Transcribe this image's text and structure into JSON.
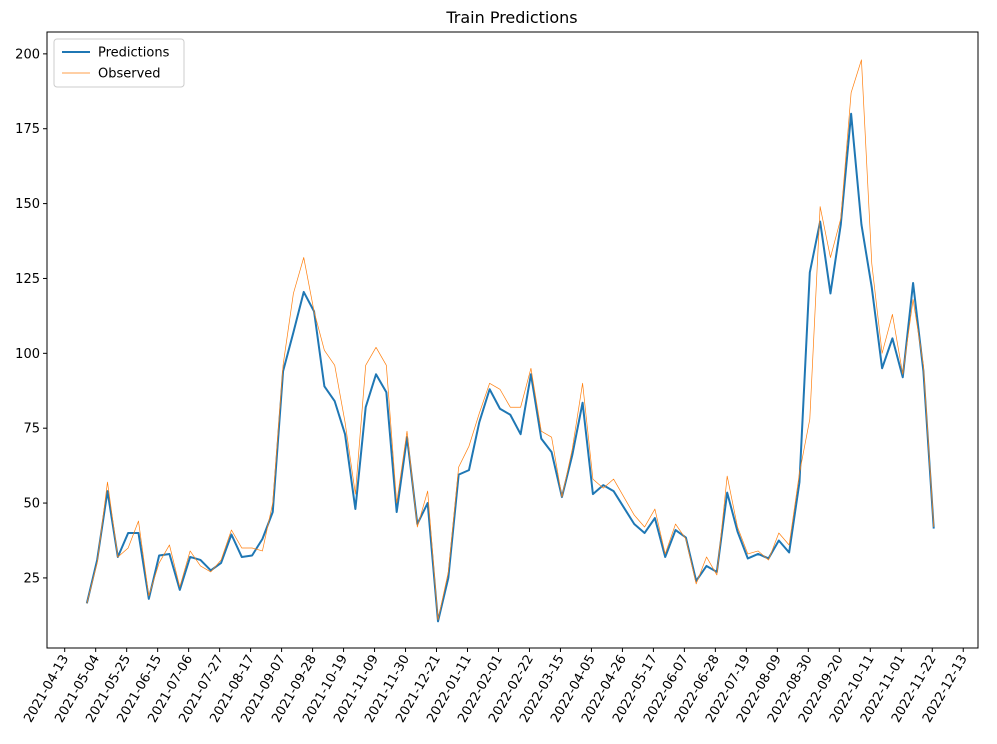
{
  "chart_data": {
    "type": "line",
    "title": "Train Predictions",
    "x": [
      "2021-04-28",
      "2021-05-05",
      "2021-05-12",
      "2021-05-19",
      "2021-05-26",
      "2021-06-02",
      "2021-06-09",
      "2021-06-16",
      "2021-06-23",
      "2021-06-30",
      "2021-07-07",
      "2021-07-14",
      "2021-07-21",
      "2021-07-28",
      "2021-08-04",
      "2021-08-11",
      "2021-08-18",
      "2021-08-25",
      "2021-09-01",
      "2021-09-08",
      "2021-09-15",
      "2021-09-22",
      "2021-09-29",
      "2021-10-06",
      "2021-10-13",
      "2021-10-20",
      "2021-10-27",
      "2021-11-03",
      "2021-11-10",
      "2021-11-17",
      "2021-11-24",
      "2021-12-01",
      "2021-12-08",
      "2021-12-15",
      "2021-12-22",
      "2021-12-29",
      "2022-01-05",
      "2022-01-12",
      "2022-01-19",
      "2022-01-26",
      "2022-02-02",
      "2022-02-09",
      "2022-02-16",
      "2022-02-23",
      "2022-03-02",
      "2022-03-09",
      "2022-03-16",
      "2022-03-23",
      "2022-03-30",
      "2022-04-06",
      "2022-04-13",
      "2022-04-20",
      "2022-04-27",
      "2022-05-04",
      "2022-05-11",
      "2022-05-18",
      "2022-05-25",
      "2022-06-01",
      "2022-06-08",
      "2022-06-15",
      "2022-06-22",
      "2022-06-29",
      "2022-07-06",
      "2022-07-13",
      "2022-07-20",
      "2022-07-27",
      "2022-08-03",
      "2022-08-10",
      "2022-08-17",
      "2022-08-24",
      "2022-08-31",
      "2022-09-07",
      "2022-09-14",
      "2022-09-21",
      "2022-09-28",
      "2022-10-05",
      "2022-10-12",
      "2022-10-19",
      "2022-10-26",
      "2022-11-02",
      "2022-11-09",
      "2022-11-16",
      "2022-11-23"
    ],
    "series": [
      {
        "name": "Predictions",
        "color": "#1f77b4",
        "width": 2,
        "values": [
          16.5,
          31,
          54,
          32,
          40,
          40,
          18,
          32.5,
          33,
          21,
          32,
          31,
          27.5,
          30,
          39.5,
          32,
          32.5,
          38,
          47,
          94,
          107,
          120.5,
          114,
          89,
          84,
          73,
          48,
          82,
          93,
          87,
          47,
          72,
          43,
          50,
          10.5,
          25,
          59.5,
          61,
          77,
          88,
          81.5,
          79.5,
          73,
          93,
          71.5,
          67,
          52,
          66,
          83.5,
          53,
          56,
          54,
          48.5,
          43,
          40,
          45,
          32,
          41,
          38.5,
          24,
          29,
          27,
          53.5,
          40.5,
          31.5,
          33,
          31.5,
          37.5,
          33.5,
          57,
          127,
          144,
          120,
          143,
          180,
          143,
          122,
          95,
          105,
          92,
          123.5,
          94,
          41.5
        ]
      },
      {
        "name": "Observed",
        "color": "#ff7f0e",
        "width": 0.7,
        "values": [
          16.5,
          30,
          57,
          32,
          35,
          44,
          19,
          30,
          36,
          22,
          34,
          29,
          27,
          31,
          41,
          35,
          35,
          34,
          50,
          96,
          120,
          132,
          114,
          101,
          96,
          77,
          53,
          96,
          102,
          96,
          50,
          74,
          42,
          54,
          11,
          27,
          62,
          69,
          80,
          90,
          88,
          82,
          82,
          95,
          74,
          72,
          52,
          68,
          90,
          58,
          55,
          58,
          52,
          46,
          42,
          48,
          33,
          43,
          38,
          23,
          32,
          26,
          59,
          42,
          33,
          34,
          31,
          40,
          36,
          60,
          78,
          149,
          132,
          145,
          187,
          198,
          130,
          100,
          113,
          93,
          118,
          96,
          42
        ]
      }
    ],
    "xlim": [
      "2021-04-01",
      "2022-12-23"
    ],
    "xticks": [
      "2021-04-13",
      "2021-05-04",
      "2021-05-25",
      "2021-06-15",
      "2021-07-06",
      "2021-07-27",
      "2021-08-17",
      "2021-09-07",
      "2021-09-28",
      "2021-10-19",
      "2021-11-09",
      "2021-11-30",
      "2021-12-21",
      "2022-01-11",
      "2022-02-01",
      "2022-02-22",
      "2022-03-15",
      "2022-04-05",
      "2022-04-26",
      "2022-05-17",
      "2022-06-07",
      "2022-06-28",
      "2022-07-19",
      "2022-08-09",
      "2022-08-30",
      "2022-09-20",
      "2022-10-11",
      "2022-11-01",
      "2022-11-22",
      "2022-12-13"
    ],
    "ylim": [
      1.6,
      207.3
    ],
    "yticks": [
      25,
      50,
      75,
      100,
      125,
      150,
      175,
      200
    ],
    "legend": "upper left"
  }
}
